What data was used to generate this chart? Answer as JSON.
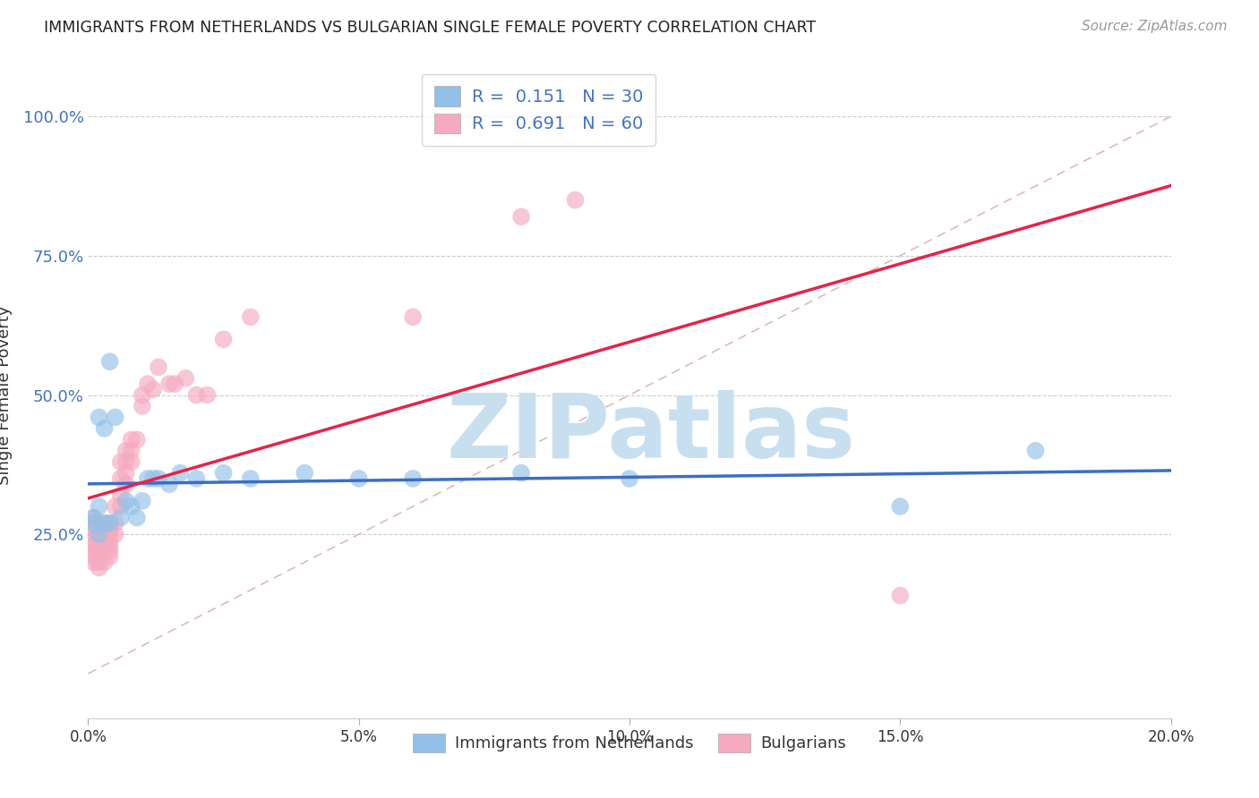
{
  "title": "IMMIGRANTS FROM NETHERLANDS VS BULGARIAN SINGLE FEMALE POVERTY CORRELATION CHART",
  "source": "Source: ZipAtlas.com",
  "ylabel": "Single Female Poverty",
  "legend_labels": [
    "Immigrants from Netherlands",
    "Bulgarians"
  ],
  "R_netherlands": 0.151,
  "N_netherlands": 30,
  "R_bulgarians": 0.691,
  "N_bulgarians": 60,
  "color_netherlands": "#92C0E8",
  "color_bulgarians": "#F5AABF",
  "trendline_netherlands": "#3A6FC4",
  "trendline_bulgarians": "#E8224A",
  "diagonal_color": "#DDBBBB",
  "background_color": "#FFFFFF",
  "grid_color": "#CCCCCC",
  "xlim": [
    0.0,
    0.2
  ],
  "ylim": [
    -0.08,
    1.08
  ],
  "y_ticks_vals": [
    1.0,
    0.75,
    0.5,
    0.25
  ],
  "y_ticks_labels": [
    "100.0%",
    "75.0%",
    "50.0%",
    "25.0%"
  ],
  "x_ticks_vals": [
    0.0,
    0.05,
    0.1,
    0.15,
    0.2
  ],
  "x_ticks_labels": [
    "0.0%",
    "5.0%",
    "10.0%",
    "15.0%",
    "20.0%"
  ],
  "nl_x": [
    0.001,
    0.001,
    0.002,
    0.002,
    0.002,
    0.003,
    0.003,
    0.004,
    0.004,
    0.005,
    0.006,
    0.007,
    0.008,
    0.009,
    0.01,
    0.011,
    0.012,
    0.013,
    0.015,
    0.017,
    0.02,
    0.025,
    0.03,
    0.04,
    0.05,
    0.06,
    0.08,
    0.1,
    0.15,
    0.175
  ],
  "nl_y": [
    0.27,
    0.28,
    0.25,
    0.3,
    0.46,
    0.27,
    0.44,
    0.27,
    0.56,
    0.46,
    0.28,
    0.31,
    0.3,
    0.28,
    0.31,
    0.35,
    0.35,
    0.35,
    0.34,
    0.36,
    0.35,
    0.36,
    0.35,
    0.36,
    0.35,
    0.35,
    0.36,
    0.35,
    0.3,
    0.4
  ],
  "bg_x": [
    0.001,
    0.001,
    0.001,
    0.001,
    0.001,
    0.001,
    0.001,
    0.001,
    0.001,
    0.002,
    0.002,
    0.002,
    0.002,
    0.002,
    0.002,
    0.002,
    0.003,
    0.003,
    0.003,
    0.003,
    0.003,
    0.003,
    0.004,
    0.004,
    0.004,
    0.004,
    0.004,
    0.004,
    0.004,
    0.005,
    0.005,
    0.005,
    0.006,
    0.006,
    0.006,
    0.006,
    0.007,
    0.007,
    0.007,
    0.007,
    0.008,
    0.008,
    0.008,
    0.009,
    0.01,
    0.01,
    0.011,
    0.012,
    0.013,
    0.015,
    0.016,
    0.018,
    0.02,
    0.022,
    0.025,
    0.03,
    0.06,
    0.08,
    0.09,
    0.15
  ],
  "bg_y": [
    0.26,
    0.27,
    0.28,
    0.25,
    0.22,
    0.23,
    0.24,
    0.21,
    0.2,
    0.26,
    0.27,
    0.25,
    0.23,
    0.22,
    0.2,
    0.19,
    0.25,
    0.27,
    0.26,
    0.24,
    0.22,
    0.2,
    0.25,
    0.27,
    0.26,
    0.24,
    0.23,
    0.22,
    0.21,
    0.3,
    0.27,
    0.25,
    0.38,
    0.35,
    0.32,
    0.3,
    0.4,
    0.38,
    0.36,
    0.34,
    0.42,
    0.4,
    0.38,
    0.42,
    0.5,
    0.48,
    0.52,
    0.51,
    0.55,
    0.52,
    0.52,
    0.53,
    0.5,
    0.5,
    0.6,
    0.64,
    0.64,
    0.82,
    0.85,
    0.14
  ],
  "watermark_text": "ZIPatlas",
  "watermark_color": "#C8DFF0"
}
